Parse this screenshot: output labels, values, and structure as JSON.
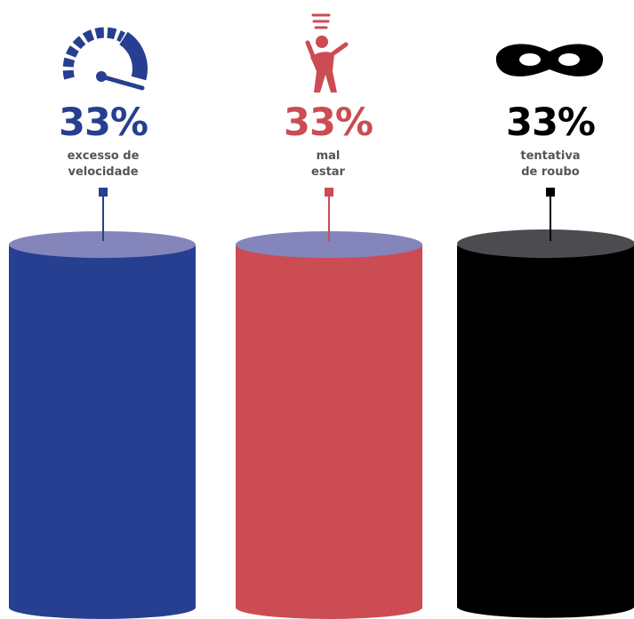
{
  "chart_data": {
    "type": "bar",
    "title": "",
    "xlabel": "",
    "ylabel": "",
    "ylim": [
      0,
      100
    ],
    "unit": "%",
    "categories": [
      [
        "excesso de",
        "velocidade"
      ],
      [
        "mal",
        "estar"
      ],
      [
        "tentativa",
        "de roubo"
      ]
    ],
    "values": [
      33,
      33,
      33
    ],
    "value_labels": [
      "33%",
      "33%",
      "33%"
    ],
    "icons": [
      "speedometer-icon",
      "dizzy-person-icon",
      "mask-icon"
    ],
    "colors": {
      "bodies": [
        "#273f90",
        "#cb4c53",
        "#000000"
      ],
      "tops": [
        "#8485bb",
        "#8485bb",
        "#4b4b50"
      ],
      "text": [
        "#273f90",
        "#cb4c53",
        "#000000"
      ],
      "label": "#555555"
    }
  }
}
